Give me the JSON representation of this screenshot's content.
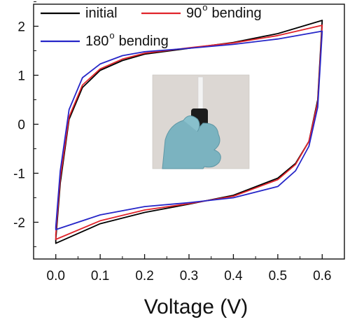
{
  "chart_data": {
    "type": "line",
    "xlabel": "Voltage (V)",
    "ylabel": "",
    "xlim": [
      -0.05,
      0.65
    ],
    "ylim": [
      -2.75,
      2.45
    ],
    "x_ticks": [
      "0.0",
      "0.1",
      "0.2",
      "0.3",
      "0.4",
      "0.5",
      "0.6"
    ],
    "y_ticks": [
      "-2",
      "-1",
      "0",
      "1",
      "2"
    ],
    "legend_position": "top",
    "inset_image": "photo of gloved fingers holding a bent flexible device",
    "series": [
      {
        "name": "initial",
        "label_main": "initial",
        "label_sup": "",
        "label_tail": "",
        "color": "#000000",
        "upper": [
          [
            0.0,
            -2.35
          ],
          [
            0.01,
            -1.2
          ],
          [
            0.03,
            0.1
          ],
          [
            0.06,
            0.75
          ],
          [
            0.1,
            1.1
          ],
          [
            0.15,
            1.3
          ],
          [
            0.2,
            1.43
          ],
          [
            0.3,
            1.55
          ],
          [
            0.4,
            1.67
          ],
          [
            0.5,
            1.85
          ],
          [
            0.6,
            2.12
          ]
        ],
        "lower": [
          [
            0.6,
            2.12
          ],
          [
            0.59,
            0.5
          ],
          [
            0.57,
            -0.35
          ],
          [
            0.54,
            -0.8
          ],
          [
            0.5,
            -1.1
          ],
          [
            0.4,
            -1.45
          ],
          [
            0.3,
            -1.63
          ],
          [
            0.2,
            -1.8
          ],
          [
            0.1,
            -2.03
          ],
          [
            0.0,
            -2.43
          ]
        ]
      },
      {
        "name": "90 bending",
        "label_main": "90",
        "label_sup": "o",
        "label_tail": "bending",
        "color": "#e0242b",
        "upper": [
          [
            0.0,
            -2.25
          ],
          [
            0.01,
            -1.1
          ],
          [
            0.03,
            0.15
          ],
          [
            0.06,
            0.8
          ],
          [
            0.1,
            1.13
          ],
          [
            0.15,
            1.33
          ],
          [
            0.2,
            1.45
          ],
          [
            0.3,
            1.56
          ],
          [
            0.4,
            1.66
          ],
          [
            0.5,
            1.81
          ],
          [
            0.6,
            2.02
          ]
        ],
        "lower": [
          [
            0.6,
            2.02
          ],
          [
            0.59,
            0.45
          ],
          [
            0.57,
            -0.35
          ],
          [
            0.54,
            -0.82
          ],
          [
            0.5,
            -1.13
          ],
          [
            0.4,
            -1.47
          ],
          [
            0.3,
            -1.62
          ],
          [
            0.2,
            -1.75
          ],
          [
            0.1,
            -1.97
          ],
          [
            0.0,
            -2.35
          ]
        ]
      },
      {
        "name": "180 bending",
        "label_main": "180",
        "label_sup": "o",
        "label_tail": "bending",
        "color": "#2626c8",
        "upper": [
          [
            0.0,
            -2.1
          ],
          [
            0.01,
            -0.95
          ],
          [
            0.03,
            0.3
          ],
          [
            0.06,
            0.95
          ],
          [
            0.1,
            1.23
          ],
          [
            0.15,
            1.4
          ],
          [
            0.2,
            1.48
          ],
          [
            0.3,
            1.55
          ],
          [
            0.4,
            1.63
          ],
          [
            0.5,
            1.74
          ],
          [
            0.6,
            1.9
          ]
        ],
        "lower": [
          [
            0.6,
            1.9
          ],
          [
            0.59,
            0.35
          ],
          [
            0.57,
            -0.45
          ],
          [
            0.54,
            -0.95
          ],
          [
            0.5,
            -1.27
          ],
          [
            0.4,
            -1.5
          ],
          [
            0.3,
            -1.6
          ],
          [
            0.2,
            -1.68
          ],
          [
            0.1,
            -1.85
          ],
          [
            0.0,
            -2.15
          ]
        ]
      }
    ]
  }
}
